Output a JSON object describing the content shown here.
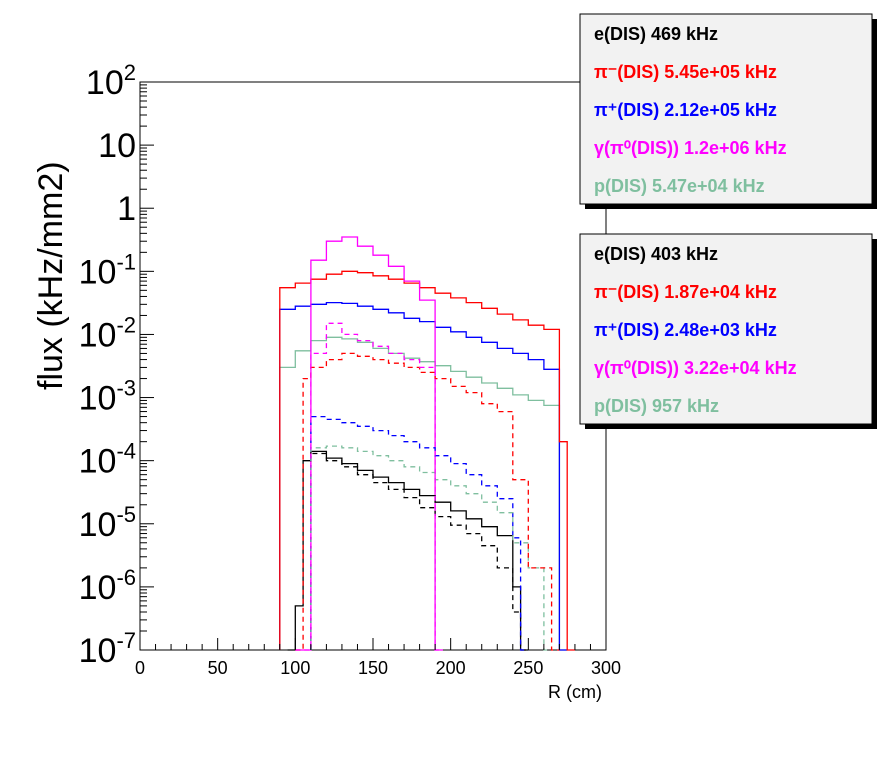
{
  "chart_data": {
    "type": "line",
    "xlabel": "R (cm)",
    "ylabel": "flux (kHz/mm2)",
    "xlim": [
      0,
      300
    ],
    "ylim": [
      1e-07,
      100
    ],
    "y_scale": "log",
    "grid": false,
    "x_ticks": [
      {
        "value": 0,
        "label": "0"
      },
      {
        "value": 50,
        "label": "50"
      },
      {
        "value": 100,
        "label": "100"
      },
      {
        "value": 150,
        "label": "150"
      },
      {
        "value": 200,
        "label": "200"
      },
      {
        "value": 250,
        "label": "250"
      },
      {
        "value": 300,
        "label": "300"
      }
    ],
    "y_ticks": [
      {
        "value": 1e-07,
        "base": "10",
        "exp": "-7"
      },
      {
        "value": 1e-06,
        "base": "10",
        "exp": "-6"
      },
      {
        "value": 1e-05,
        "base": "10",
        "exp": "-5"
      },
      {
        "value": 0.0001,
        "base": "10",
        "exp": "-4"
      },
      {
        "value": 0.001,
        "base": "10",
        "exp": "-3"
      },
      {
        "value": 0.01,
        "base": "10",
        "exp": "-2"
      },
      {
        "value": 0.1,
        "base": "10",
        "exp": "-1"
      },
      {
        "value": 1,
        "base": "1",
        "exp": ""
      },
      {
        "value": 10,
        "base": "10",
        "exp": ""
      },
      {
        "value": 100,
        "base": "10",
        "exp": "2"
      }
    ],
    "legends": [
      {
        "placement": "top-right",
        "entries": [
          {
            "label": "e(DIS)  469 kHz",
            "color": "#000000"
          },
          {
            "label": "π⁻(DIS)  5.45e+05 kHz",
            "color": "#ff0000"
          },
          {
            "label": "π⁺(DIS)  2.12e+05 kHz",
            "color": "#0000ff"
          },
          {
            "label": "γ(π⁰(DIS))  1.2e+06 kHz",
            "color": "#ff00ff"
          },
          {
            "label": "p(DIS)  5.47e+04 kHz",
            "color": "#7fbf9f"
          }
        ]
      },
      {
        "placement": "right",
        "entries": [
          {
            "label": "e(DIS)  403 kHz",
            "color": "#000000"
          },
          {
            "label": "π⁻(DIS)  1.87e+04 kHz",
            "color": "#ff0000"
          },
          {
            "label": "π⁺(DIS)  2.48e+03 kHz",
            "color": "#0000ff"
          },
          {
            "label": "γ(π⁰(DIS))  3.22e+04 kHz",
            "color": "#ff00ff"
          },
          {
            "label": "p(DIS)  957 kHz",
            "color": "#7fbf9f"
          }
        ]
      }
    ],
    "series": [
      {
        "set": 1,
        "dashed": false,
        "color": "#7fbf9f",
        "points": [
          [
            90,
            0.003
          ],
          [
            100,
            0.0055
          ],
          [
            110,
            0.008
          ],
          [
            120,
            0.009
          ],
          [
            130,
            0.0085
          ],
          [
            140,
            0.0075
          ],
          [
            150,
            0.006
          ],
          [
            160,
            0.005
          ],
          [
            170,
            0.0042
          ],
          [
            180,
            0.0037
          ],
          [
            190,
            0.0032
          ],
          [
            200,
            0.0026
          ],
          [
            210,
            0.0021
          ],
          [
            220,
            0.0017
          ],
          [
            230,
            0.0014
          ],
          [
            240,
            0.0011
          ],
          [
            250,
            0.0009
          ],
          [
            260,
            0.00075
          ],
          [
            270,
            1e-07
          ]
        ]
      },
      {
        "set": 1,
        "dashed": false,
        "color": "#0000ff",
        "points": [
          [
            90,
            0.025
          ],
          [
            100,
            0.028
          ],
          [
            110,
            0.03
          ],
          [
            120,
            0.032
          ],
          [
            130,
            0.031
          ],
          [
            140,
            0.028
          ],
          [
            150,
            0.025
          ],
          [
            160,
            0.022
          ],
          [
            170,
            0.018
          ],
          [
            180,
            0.016
          ],
          [
            190,
            0.013
          ],
          [
            200,
            0.011
          ],
          [
            210,
            0.009
          ],
          [
            220,
            0.0075
          ],
          [
            230,
            0.006
          ],
          [
            240,
            0.005
          ],
          [
            250,
            0.004
          ],
          [
            260,
            0.0028
          ],
          [
            270,
            1e-07
          ]
        ]
      },
      {
        "set": 1,
        "dashed": false,
        "color": "#ff0000",
        "points": [
          [
            90,
            0.055
          ],
          [
            100,
            0.065
          ],
          [
            110,
            0.075
          ],
          [
            120,
            0.09
          ],
          [
            130,
            0.1
          ],
          [
            140,
            0.095
          ],
          [
            150,
            0.085
          ],
          [
            160,
            0.075
          ],
          [
            170,
            0.065
          ],
          [
            180,
            0.055
          ],
          [
            190,
            0.045
          ],
          [
            200,
            0.038
          ],
          [
            210,
            0.032
          ],
          [
            220,
            0.026
          ],
          [
            230,
            0.021
          ],
          [
            240,
            0.017
          ],
          [
            250,
            0.014
          ],
          [
            260,
            0.012
          ],
          [
            270,
            0.0002
          ],
          [
            275,
            1e-07
          ]
        ]
      },
      {
        "set": 1,
        "dashed": false,
        "color": "#ff00ff",
        "points": [
          [
            100,
            1e-07
          ],
          [
            110,
            0.15
          ],
          [
            120,
            0.3
          ],
          [
            130,
            0.35
          ],
          [
            140,
            0.25
          ],
          [
            150,
            0.18
          ],
          [
            160,
            0.12
          ],
          [
            170,
            0.07
          ],
          [
            180,
            0.035
          ],
          [
            190,
            1e-07
          ]
        ]
      },
      {
        "set": 2,
        "dashed": false,
        "color": "#000000",
        "points": [
          [
            95,
            1e-07
          ],
          [
            100,
            5e-07
          ],
          [
            105,
            0.0001
          ],
          [
            110,
            0.00014
          ],
          [
            120,
            0.00011
          ],
          [
            130,
            9e-05
          ],
          [
            140,
            7e-05
          ],
          [
            150,
            5.5e-05
          ],
          [
            160,
            4.5e-05
          ],
          [
            170,
            3.5e-05
          ],
          [
            180,
            2.8e-05
          ],
          [
            190,
            2.2e-05
          ],
          [
            200,
            1.6e-05
          ],
          [
            210,
            1.2e-05
          ],
          [
            220,
            9e-06
          ],
          [
            230,
            6.5e-06
          ],
          [
            240,
            1e-06
          ],
          [
            245,
            1e-07
          ]
        ]
      },
      {
        "set": 2,
        "dashed": true,
        "color": "#000000",
        "points": [
          [
            110,
            0.00013
          ],
          [
            120,
            0.0001
          ],
          [
            130,
            8e-05
          ],
          [
            140,
            6e-05
          ],
          [
            150,
            4.5e-05
          ],
          [
            160,
            3.5e-05
          ],
          [
            170,
            2.6e-05
          ],
          [
            180,
            1.8e-05
          ],
          [
            190,
            1.3e-05
          ],
          [
            200,
            9.5e-06
          ],
          [
            210,
            7e-06
          ],
          [
            220,
            4.5e-06
          ],
          [
            230,
            2e-06
          ],
          [
            240,
            4e-07
          ],
          [
            245,
            1e-07
          ]
        ]
      },
      {
        "set": 2,
        "dashed": true,
        "color": "#0000ff",
        "points": [
          [
            110,
            0.0005
          ],
          [
            120,
            0.00045
          ],
          [
            130,
            0.0004
          ],
          [
            140,
            0.00035
          ],
          [
            150,
            0.0003
          ],
          [
            160,
            0.00025
          ],
          [
            170,
            0.0002
          ],
          [
            180,
            0.00016
          ],
          [
            190,
            0.00012
          ],
          [
            200,
            9e-05
          ],
          [
            210,
            6e-05
          ],
          [
            220,
            4e-05
          ],
          [
            230,
            2.5e-05
          ],
          [
            240,
            6e-06
          ],
          [
            245,
            1e-07
          ]
        ]
      },
      {
        "set": 2,
        "dashed": true,
        "color": "#7fbf9f",
        "points": [
          [
            110,
            0.00016
          ],
          [
            120,
            0.00017
          ],
          [
            130,
            0.00016
          ],
          [
            140,
            0.00014
          ],
          [
            150,
            0.00012
          ],
          [
            160,
            0.0001
          ],
          [
            170,
            8e-05
          ],
          [
            180,
            6.5e-05
          ],
          [
            190,
            5e-05
          ],
          [
            200,
            4e-05
          ],
          [
            210,
            3e-05
          ],
          [
            220,
            2.2e-05
          ],
          [
            230,
            1.5e-05
          ],
          [
            240,
            5e-06
          ],
          [
            250,
            2e-06
          ],
          [
            260,
            1e-07
          ]
        ]
      },
      {
        "set": 2,
        "dashed": true,
        "color": "#ff0000",
        "points": [
          [
            100,
            1e-07
          ],
          [
            105,
            0.002
          ],
          [
            110,
            0.003
          ],
          [
            120,
            0.004
          ],
          [
            130,
            0.005
          ],
          [
            140,
            0.0045
          ],
          [
            150,
            0.004
          ],
          [
            160,
            0.0035
          ],
          [
            170,
            0.003
          ],
          [
            180,
            0.0025
          ],
          [
            190,
            0.002
          ],
          [
            200,
            0.0015
          ],
          [
            210,
            0.0012
          ],
          [
            220,
            0.0008
          ],
          [
            230,
            0.0006
          ],
          [
            240,
            5e-05
          ],
          [
            250,
            2e-06
          ],
          [
            260,
            2e-06
          ],
          [
            265,
            1e-07
          ]
        ]
      },
      {
        "set": 2,
        "dashed": true,
        "color": "#ff00ff",
        "points": [
          [
            100,
            1e-07
          ],
          [
            110,
            0.005
          ],
          [
            120,
            0.015
          ],
          [
            130,
            0.01
          ],
          [
            140,
            0.008
          ],
          [
            150,
            0.0065
          ],
          [
            160,
            0.005
          ],
          [
            170,
            0.004
          ],
          [
            180,
            0.003
          ],
          [
            190,
            1e-07
          ]
        ]
      }
    ]
  }
}
